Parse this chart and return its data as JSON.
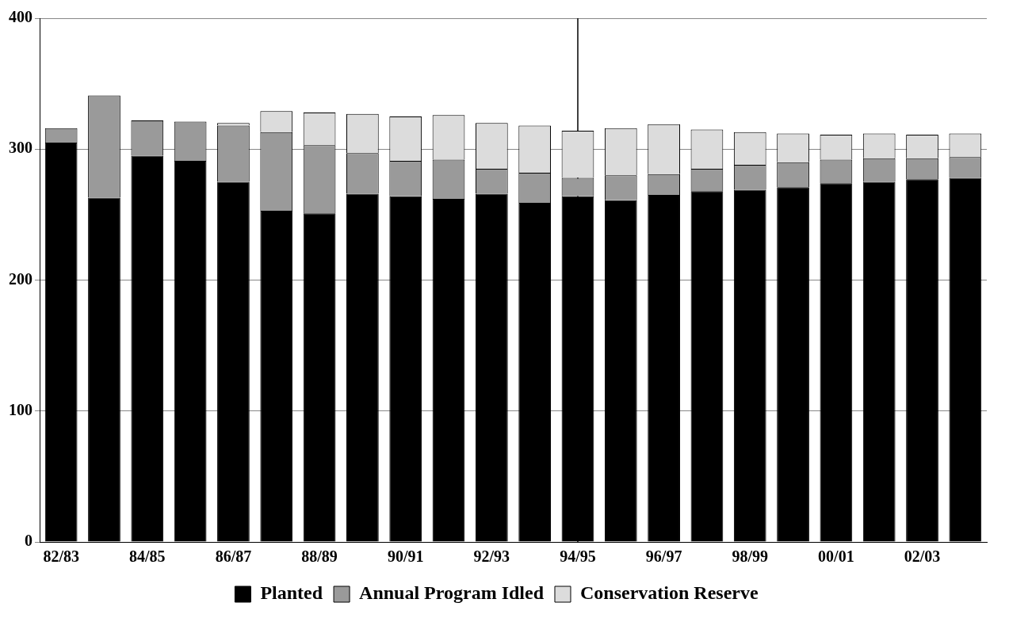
{
  "chart_data": {
    "type": "bar",
    "stacked": true,
    "categories": [
      "82/83",
      null,
      "84/85",
      null,
      "86/87",
      null,
      "88/89",
      null,
      "90/91",
      null,
      "92/93",
      null,
      "94/95",
      null,
      "96/97",
      null,
      "98/99",
      null,
      "00/01",
      null,
      "02/03",
      null
    ],
    "series": [
      {
        "name": "Planted",
        "color": "#000000",
        "values": [
          305,
          263,
          295,
          291,
          275,
          253,
          251,
          266,
          264,
          262,
          266,
          259,
          264,
          261,
          265,
          268,
          269,
          271,
          274,
          275,
          277,
          278
        ]
      },
      {
        "name": "Annual Program Idled",
        "color": "#9a9a9a",
        "values": [
          11,
          78,
          27,
          30,
          43,
          60,
          52,
          31,
          27,
          30,
          19,
          23,
          14,
          19,
          16,
          17,
          19,
          19,
          18,
          18,
          16,
          16
        ]
      },
      {
        "name": "Conservation Reserve",
        "color": "#dcdcdc",
        "values": [
          0,
          0,
          0,
          0,
          2,
          16,
          25,
          30,
          34,
          34,
          35,
          36,
          36,
          36,
          38,
          30,
          25,
          22,
          19,
          19,
          18,
          18
        ]
      }
    ],
    "ylim": [
      0,
      400
    ],
    "yticks": [
      0,
      100,
      200,
      300,
      400
    ],
    "grid": "y",
    "legend": "bottom",
    "ref_lines": [
      {
        "axis": "x",
        "value": "94/95",
        "color": "#000000"
      }
    ]
  }
}
